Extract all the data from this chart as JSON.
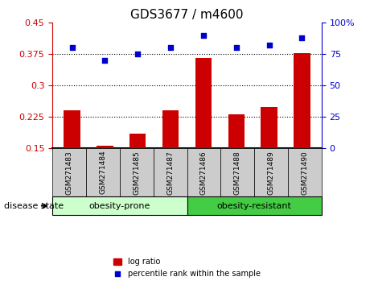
{
  "title": "GDS3677 / m4600",
  "samples": [
    "GSM271483",
    "GSM271484",
    "GSM271485",
    "GSM271487",
    "GSM271486",
    "GSM271488",
    "GSM271489",
    "GSM271490"
  ],
  "log_ratio": [
    0.24,
    0.155,
    0.185,
    0.24,
    0.365,
    0.232,
    0.248,
    0.377
  ],
  "percentile_rank": [
    80,
    70,
    75,
    80,
    90,
    80,
    82,
    88
  ],
  "group1_label": "obesity-prone",
  "group1_count": 4,
  "group2_label": "obesity-resistant",
  "group2_count": 4,
  "disease_state_label": "disease state",
  "legend_bar_label": "log ratio",
  "legend_dot_label": "percentile rank within the sample",
  "bar_color": "#CC0000",
  "dot_color": "#0000CC",
  "group1_bg": "#CCFFCC",
  "group2_bg": "#44CC44",
  "sample_bg": "#CCCCCC",
  "ylim_left": [
    0.15,
    0.45
  ],
  "ylim_right": [
    0,
    100
  ],
  "yticks_left": [
    0.15,
    0.225,
    0.3,
    0.375,
    0.45
  ],
  "yticks_right": [
    0,
    25,
    50,
    75,
    100
  ],
  "ytick_labels_left": [
    "0.15",
    "0.225",
    "0.3",
    "0.375",
    "0.45"
  ],
  "ytick_labels_right": [
    "0",
    "25",
    "50",
    "75",
    "100%"
  ]
}
